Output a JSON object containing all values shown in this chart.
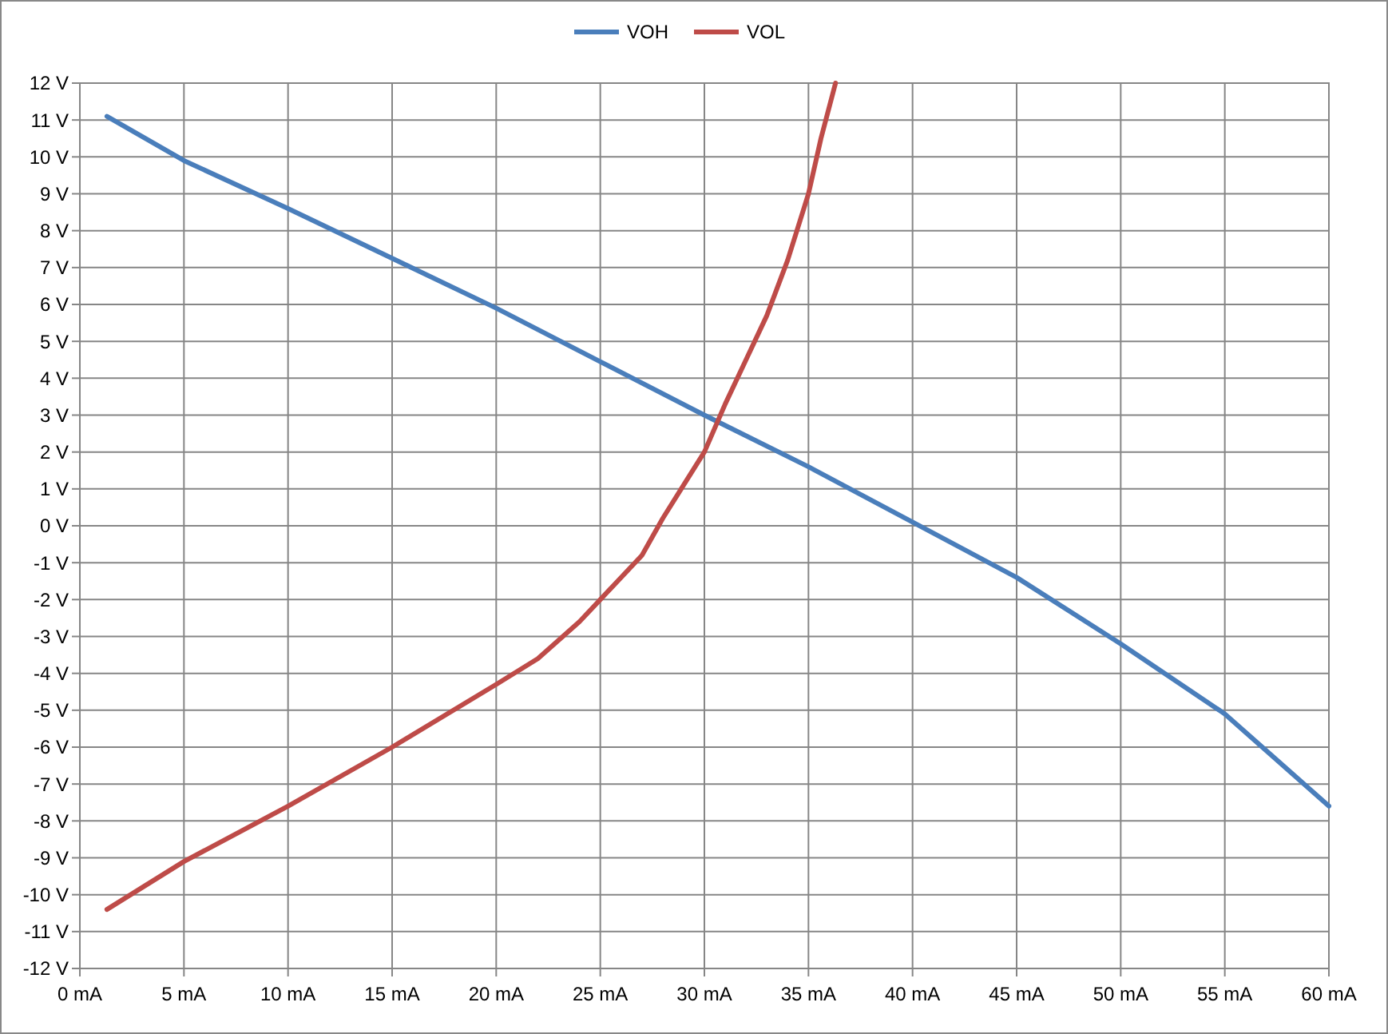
{
  "chart_data": {
    "type": "line",
    "legend": "top",
    "grid": true,
    "marker": "none",
    "line_style": "solid",
    "xlim": [
      0,
      60
    ],
    "ylim": [
      -12,
      12
    ],
    "xticks": [
      {
        "value": 0,
        "label": "0 mA"
      },
      {
        "value": 5,
        "label": "5 mA"
      },
      {
        "value": 10,
        "label": "10 mA"
      },
      {
        "value": 15,
        "label": "15 mA"
      },
      {
        "value": 20,
        "label": "20 mA"
      },
      {
        "value": 25,
        "label": "25 mA"
      },
      {
        "value": 30,
        "label": "30 mA"
      },
      {
        "value": 35,
        "label": "35 mA"
      },
      {
        "value": 40,
        "label": "40 mA"
      },
      {
        "value": 45,
        "label": "45 mA"
      },
      {
        "value": 50,
        "label": "50 mA"
      },
      {
        "value": 55,
        "label": "55 mA"
      },
      {
        "value": 60,
        "label": "60 mA"
      }
    ],
    "yticks": [
      {
        "value": -12,
        "label": "-12 V"
      },
      {
        "value": -11,
        "label": "-11 V"
      },
      {
        "value": -10,
        "label": "-10 V"
      },
      {
        "value": -9,
        "label": "-9 V"
      },
      {
        "value": -8,
        "label": "-8 V"
      },
      {
        "value": -7,
        "label": "-7 V"
      },
      {
        "value": -6,
        "label": "-6 V"
      },
      {
        "value": -5,
        "label": "-5 V"
      },
      {
        "value": -4,
        "label": "-4 V"
      },
      {
        "value": -3,
        "label": "-3 V"
      },
      {
        "value": -2,
        "label": "-2 V"
      },
      {
        "value": -1,
        "label": "-1 V"
      },
      {
        "value": 0,
        "label": "0 V"
      },
      {
        "value": 1,
        "label": "1 V"
      },
      {
        "value": 2,
        "label": "2 V"
      },
      {
        "value": 3,
        "label": "3 V"
      },
      {
        "value": 4,
        "label": "4 V"
      },
      {
        "value": 5,
        "label": "5 V"
      },
      {
        "value": 6,
        "label": "6 V"
      },
      {
        "value": 7,
        "label": "7 V"
      },
      {
        "value": 8,
        "label": "8 V"
      },
      {
        "value": 9,
        "label": "9 V"
      },
      {
        "value": 10,
        "label": "10 V"
      },
      {
        "value": 11,
        "label": "11 V"
      },
      {
        "value": 12,
        "label": "12 V"
      }
    ],
    "series": [
      {
        "name": "VOH",
        "color": "#4a7ebb",
        "x": [
          1.3,
          5,
          10,
          15,
          20,
          25,
          30,
          35,
          40,
          45,
          50,
          55,
          60
        ],
        "values": [
          11.1,
          9.9,
          8.6,
          7.25,
          5.9,
          4.45,
          3.0,
          1.6,
          0.1,
          -1.4,
          -3.2,
          -5.1,
          -7.6
        ]
      },
      {
        "name": "VOL",
        "color": "#be4b48",
        "x": [
          1.3,
          5,
          10,
          15,
          20,
          22,
          24,
          25,
          27,
          28,
          29,
          30,
          31,
          32,
          33,
          34,
          35,
          35.6,
          36.3
        ],
        "values": [
          -10.4,
          -9.1,
          -7.6,
          -6.0,
          -4.3,
          -3.6,
          -2.6,
          -2.0,
          -0.8,
          0.2,
          1.1,
          2.0,
          3.3,
          4.5,
          5.7,
          7.2,
          9.0,
          10.5,
          12
        ]
      }
    ]
  }
}
